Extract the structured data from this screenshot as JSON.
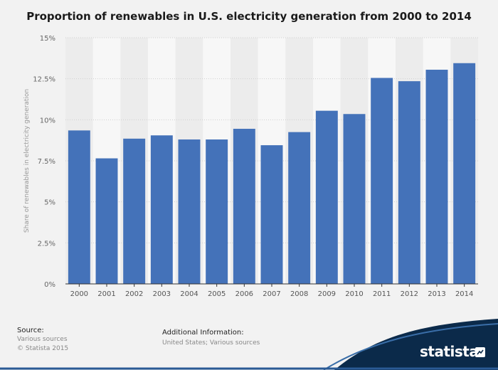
{
  "chart_data": {
    "type": "bar",
    "title": "Proportion of renewables in U.S. electricity generation from 2000 to 2014",
    "xlabel": "",
    "ylabel": "Share of renewables in electricity generation",
    "categories": [
      "2000",
      "2001",
      "2002",
      "2003",
      "2004",
      "2005",
      "2006",
      "2007",
      "2008",
      "2009",
      "2010",
      "2011",
      "2012",
      "2013",
      "2014"
    ],
    "values": [
      9.35,
      7.65,
      8.85,
      9.05,
      8.8,
      8.8,
      9.45,
      8.45,
      9.25,
      10.55,
      10.35,
      12.55,
      12.35,
      13.05,
      13.45
    ],
    "ylim": [
      0,
      15
    ],
    "yticks": [
      0,
      2.5,
      5,
      7.5,
      10,
      12.5,
      15
    ],
    "ytick_labels": [
      "0%",
      "2.5%",
      "5%",
      "7.5%",
      "10%",
      "12.5%",
      "15%"
    ],
    "grid": true,
    "bar_color": "#4472b9"
  },
  "footer": {
    "source_label": "Source:",
    "source_lines": [
      "Various sources",
      "© Statista 2015"
    ],
    "info_label": "Additional Information:",
    "info_text": "United States; Various sources"
  },
  "brand": {
    "name": "statista",
    "color": "#0b2a4a"
  }
}
